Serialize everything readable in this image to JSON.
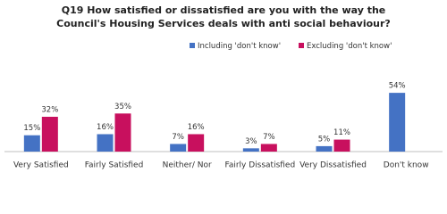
{
  "chart_data": {
    "type": "bar",
    "title": "Q19 How satisfied or dissatisfied are you with the way the Council's Housing Services deals with anti social behaviour?",
    "categories": [
      "Very Satisfied",
      "Fairly Satisfied",
      "Neither/ Nor",
      "Fairly Dissatisfied",
      "Very Dissatisfied",
      "Don't know"
    ],
    "series": [
      {
        "name": "Including 'don't know'",
        "color": "#4472c4",
        "values": [
          15,
          16,
          7,
          3,
          5,
          54
        ],
        "value_labels": [
          "15%",
          "16%",
          "7%",
          "3%",
          "5%",
          "54%"
        ]
      },
      {
        "name": "Excluding 'don't know'",
        "color": "#c8105e",
        "values": [
          32,
          35,
          16,
          7,
          11,
          null
        ],
        "value_labels": [
          "32%",
          "35%",
          "16%",
          "7%",
          "11%",
          null
        ]
      }
    ]
  }
}
